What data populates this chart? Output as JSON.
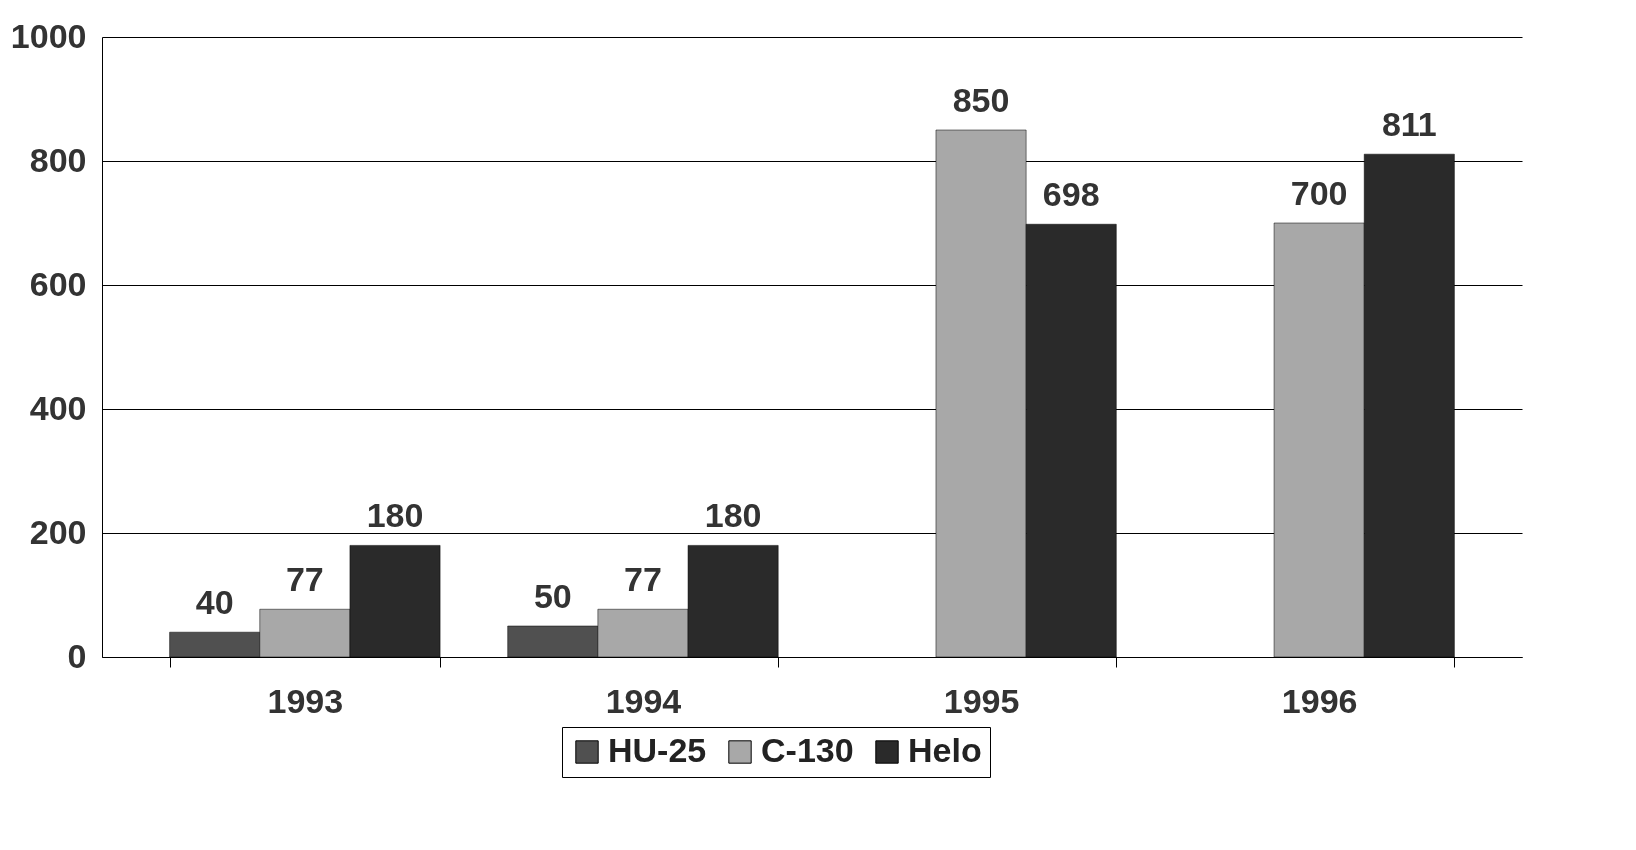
{
  "chart_data": {
    "type": "bar",
    "categories": [
      "1993",
      "1994",
      "1995",
      "1996"
    ],
    "series": [
      {
        "name": "HU-25",
        "color": "#505050",
        "values": [
          40,
          50,
          null,
          null
        ]
      },
      {
        "name": "C-130",
        "color": "#a8a8a8",
        "values": [
          77,
          77,
          850,
          700
        ]
      },
      {
        "name": "Helo",
        "color": "#2a2a2a",
        "values": [
          180,
          180,
          698,
          811
        ]
      }
    ],
    "ylim": [
      0,
      1000
    ],
    "yticks": [
      0,
      200,
      400,
      600,
      800,
      1000
    ],
    "grid": "y",
    "legend": "bottom",
    "data_labels": true
  }
}
